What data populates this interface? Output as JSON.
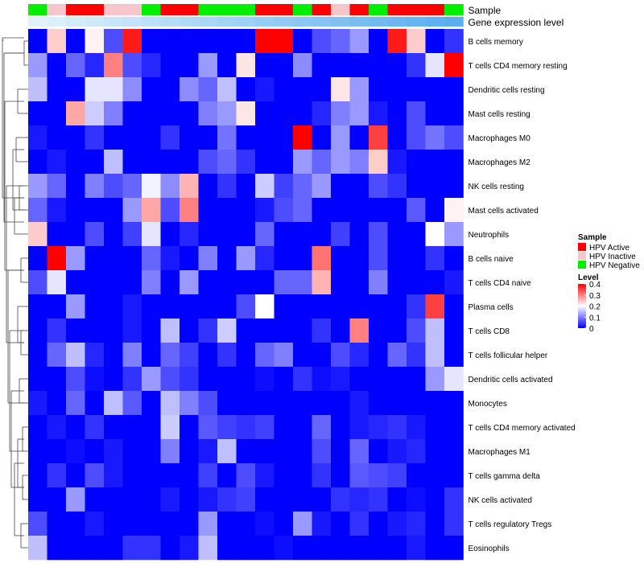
{
  "chart_data": {
    "type": "heatmap",
    "title": "",
    "annotation_rows": [
      "Sample",
      "Gene expression level"
    ],
    "rows": [
      "B cells memory",
      "T cells CD4 memory resting",
      "Dendritic cells resting",
      "Mast cells resting",
      "Macrophages M0",
      "Macrophages M2",
      "NK cells resting",
      "Mast cells activated",
      "Neutrophils",
      "B cells naive",
      "T cells CD4 naive",
      "Plasma cells",
      "T cells CD8",
      "T cells follicular helper",
      "Dendritic cells activated",
      "Monocytes",
      "T cells CD4 memory activated",
      "Macrophages M1",
      "T cells gamma delta",
      "NK cells activated",
      "T cells regulatory  Tregs",
      "Eosinophils"
    ],
    "sample_groups": [
      "HPV Negative",
      "HPV Inactive",
      "HPV Active",
      "HPV Active",
      "HPV Inactive",
      "HPV Inactive",
      "HPV Negative",
      "HPV Active",
      "HPV Active",
      "HPV Negative",
      "HPV Negative",
      "HPV Negative",
      "HPV Active",
      "HPV Active",
      "HPV Negative",
      "HPV Active",
      "HPV Inactive",
      "HPV Active",
      "HPV Negative",
      "HPV Active",
      "HPV Active",
      "HPV Active",
      "HPV Negative"
    ],
    "expression_gradient": [
      "#e0f3fb",
      "#5aaef0"
    ],
    "values": [
      [
        0.0,
        0.24,
        0.0,
        0.21,
        0.06,
        0.38,
        0.0,
        0.0,
        0.0,
        0.0,
        0.0,
        0.0,
        0.4,
        0.4,
        0.0,
        0.06,
        0.08,
        0.12,
        0.0,
        0.38,
        0.24,
        0.0,
        0.04
      ],
      [
        0.12,
        0.0,
        0.08,
        0.03,
        0.3,
        0.06,
        0.03,
        0.0,
        0.0,
        0.12,
        0.0,
        0.22,
        0.0,
        0.0,
        0.11,
        0.0,
        0.0,
        0.0,
        0.0,
        0.0,
        0.04,
        0.18,
        0.4
      ],
      [
        0.15,
        0.0,
        0.0,
        0.18,
        0.18,
        0.11,
        0.0,
        0.0,
        0.11,
        0.08,
        0.15,
        0.0,
        0.02,
        0.0,
        0.0,
        0.0,
        0.22,
        0.12,
        0.0,
        0.0,
        0.0,
        0.0,
        0.0
      ],
      [
        0.0,
        0.0,
        0.27,
        0.16,
        0.1,
        0.0,
        0.0,
        0.0,
        0.0,
        0.1,
        0.12,
        0.22,
        0.0,
        0.0,
        0.0,
        0.03,
        0.1,
        0.12,
        0.02,
        0.0,
        0.06,
        0.0,
        0.0
      ],
      [
        0.02,
        0.0,
        0.0,
        0.04,
        0.0,
        0.0,
        0.0,
        0.04,
        0.0,
        0.0,
        0.09,
        0.0,
        0.0,
        0.0,
        0.4,
        0.0,
        0.12,
        0.0,
        0.35,
        0.0,
        0.06,
        0.09,
        0.06
      ],
      [
        0.0,
        0.02,
        0.0,
        0.0,
        0.15,
        0.0,
        0.0,
        0.0,
        0.0,
        0.06,
        0.08,
        0.04,
        0.0,
        0.0,
        0.12,
        0.08,
        0.12,
        0.1,
        0.24,
        0.02,
        0.0,
        0.0,
        0.0
      ],
      [
        0.12,
        0.08,
        0.0,
        0.1,
        0.06,
        0.08,
        0.19,
        0.11,
        0.26,
        0.0,
        0.04,
        0.0,
        0.16,
        0.05,
        0.08,
        0.12,
        0.0,
        0.0,
        0.06,
        0.04,
        0.0,
        0.0,
        0.0
      ],
      [
        0.08,
        0.02,
        0.0,
        0.0,
        0.0,
        0.12,
        0.27,
        0.06,
        0.3,
        0.0,
        0.0,
        0.0,
        0.02,
        0.06,
        0.08,
        0.0,
        0.0,
        0.0,
        0.0,
        0.0,
        0.07,
        0.0,
        0.21
      ],
      [
        0.24,
        0.0,
        0.0,
        0.06,
        0.0,
        0.05,
        0.18,
        0.0,
        0.03,
        0.0,
        0.0,
        0.0,
        0.08,
        0.0,
        0.0,
        0.0,
        0.05,
        0.0,
        0.06,
        0.0,
        0.0,
        0.2,
        0.12
      ],
      [
        0.0,
        0.4,
        0.12,
        0.0,
        0.0,
        0.0,
        0.08,
        0.02,
        0.0,
        0.1,
        0.0,
        0.12,
        0.03,
        0.0,
        0.0,
        0.31,
        0.0,
        0.0,
        0.06,
        0.0,
        0.0,
        0.04,
        0.0
      ],
      [
        0.06,
        0.18,
        0.0,
        0.0,
        0.0,
        0.0,
        0.1,
        0.0,
        0.12,
        0.0,
        0.0,
        0.0,
        0.0,
        0.08,
        0.08,
        0.26,
        0.0,
        0.0,
        0.1,
        0.0,
        0.0,
        0.0,
        0.02
      ],
      [
        0.0,
        0.0,
        0.12,
        0.0,
        0.0,
        0.02,
        0.0,
        0.0,
        0.0,
        0.0,
        0.0,
        0.06,
        0.2,
        0.0,
        0.0,
        0.0,
        0.0,
        0.0,
        0.0,
        0.0,
        0.04,
        0.35,
        0.0
      ],
      [
        0.0,
        0.04,
        0.0,
        0.0,
        0.0,
        0.02,
        0.0,
        0.15,
        0.0,
        0.04,
        0.16,
        0.0,
        0.0,
        0.0,
        0.0,
        0.04,
        0.0,
        0.3,
        0.0,
        0.0,
        0.06,
        0.15,
        0.0
      ],
      [
        0.0,
        0.08,
        0.15,
        0.03,
        0.0,
        0.1,
        0.0,
        0.08,
        0.05,
        0.0,
        0.04,
        0.0,
        0.08,
        0.1,
        0.0,
        0.0,
        0.06,
        0.03,
        0.0,
        0.08,
        0.04,
        0.15,
        0.0
      ],
      [
        0.0,
        0.0,
        0.06,
        0.01,
        0.0,
        0.04,
        0.12,
        0.06,
        0.04,
        0.0,
        0.0,
        0.0,
        0.01,
        0.0,
        0.04,
        0.01,
        0.02,
        0.0,
        0.0,
        0.0,
        0.0,
        0.12,
        0.18
      ],
      [
        0.02,
        0.0,
        0.08,
        0.0,
        0.15,
        0.07,
        0.0,
        0.15,
        0.1,
        0.06,
        0.0,
        0.0,
        0.0,
        0.0,
        0.0,
        0.0,
        0.0,
        0.02,
        0.0,
        0.0,
        0.0,
        0.0,
        0.0
      ],
      [
        0.0,
        0.02,
        0.0,
        0.04,
        0.0,
        0.0,
        0.0,
        0.16,
        0.0,
        0.07,
        0.05,
        0.04,
        0.05,
        0.0,
        0.0,
        0.08,
        0.0,
        0.02,
        0.03,
        0.04,
        0.02,
        0.0,
        0.0
      ],
      [
        0.0,
        0.0,
        0.01,
        0.0,
        0.02,
        0.0,
        0.0,
        0.1,
        0.0,
        0.02,
        0.15,
        0.0,
        0.0,
        0.0,
        0.0,
        0.06,
        0.0,
        0.08,
        0.0,
        0.02,
        0.03,
        0.0,
        0.0
      ],
      [
        0.0,
        0.04,
        0.0,
        0.06,
        0.02,
        0.0,
        0.0,
        0.0,
        0.0,
        0.05,
        0.0,
        0.06,
        0.02,
        0.0,
        0.0,
        0.04,
        0.0,
        0.07,
        0.06,
        0.05,
        0.0,
        0.0,
        0.0
      ],
      [
        0.0,
        0.0,
        0.12,
        0.0,
        0.0,
        0.0,
        0.0,
        0.02,
        0.0,
        0.02,
        0.04,
        0.05,
        0.0,
        0.0,
        0.0,
        0.0,
        0.04,
        0.03,
        0.04,
        0.0,
        0.01,
        0.0,
        0.04
      ],
      [
        0.06,
        0.0,
        0.0,
        0.02,
        0.0,
        0.0,
        0.0,
        0.0,
        0.0,
        0.12,
        0.0,
        0.0,
        0.01,
        0.0,
        0.12,
        0.02,
        0.0,
        0.04,
        0.0,
        0.02,
        0.03,
        0.0,
        0.04
      ],
      [
        0.15,
        0.0,
        0.0,
        0.0,
        0.0,
        0.04,
        0.04,
        0.0,
        0.02,
        0.15,
        0.0,
        0.0,
        0.0,
        0.01,
        0.0,
        0.0,
        0.0,
        0.0,
        0.0,
        0.0,
        0.02,
        0.0,
        0.0
      ]
    ]
  },
  "legend": {
    "sample_title": "Sample",
    "sample_items": [
      {
        "label": "HPV Active",
        "color": "#ff0000"
      },
      {
        "label": "HPV Inactive",
        "color": "#f5c6cb"
      },
      {
        "label": "HPV Negative",
        "color": "#00ee00"
      }
    ],
    "level_title": "Level",
    "level_ticks": [
      "0.4",
      "0.3",
      "0.2",
      "0.1",
      "0"
    ],
    "level_tick_values": [
      0.4,
      0.3,
      0.2,
      0.1,
      0
    ]
  },
  "colors": {
    "low": "#0000ff",
    "mid": "#ffffff",
    "high": "#ff0000"
  }
}
